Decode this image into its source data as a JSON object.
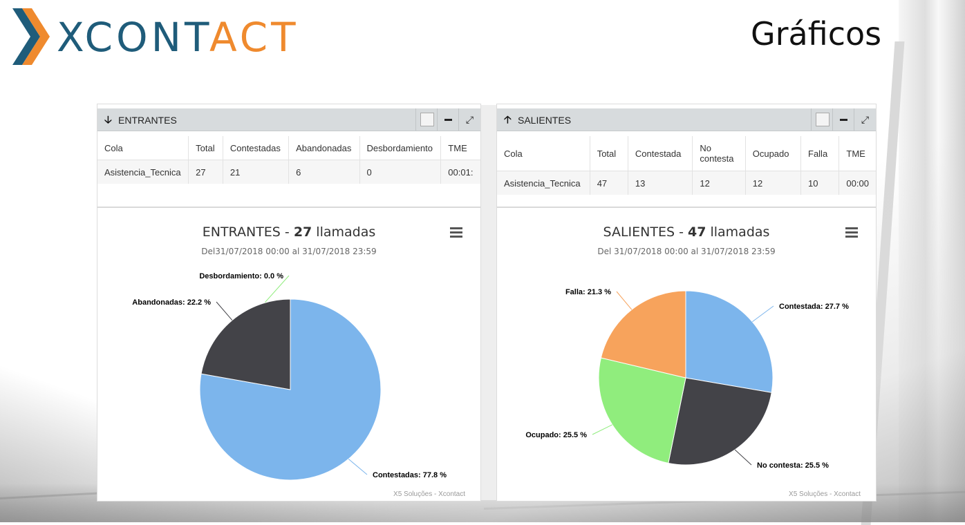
{
  "header": {
    "logo_left": "X",
    "logo_mid": "CONT",
    "logo_right": "ACT",
    "page_title": "Gráficos"
  },
  "colors": {
    "contestadas": "#7cb5ec",
    "abandonadas": "#434348",
    "desbordamiento": "#90ed7d",
    "falla": "#f7a35c",
    "ocupado": "#90ed7d",
    "no_contesta": "#434348",
    "contestada": "#7cb5ec"
  },
  "entrantes": {
    "panel_title": "ENTRANTES",
    "columns": [
      "Cola",
      "Total",
      "Contestadas",
      "Abandonadas",
      "Desbordamiento",
      "TME"
    ],
    "rows": [
      [
        "Asistencia_Tecnica",
        "27",
        "21",
        "6",
        "0",
        "00:01:"
      ]
    ],
    "chart_title_prefix": "ENTRANTES - ",
    "chart_title_count": "27",
    "chart_title_suffix": " llamadas",
    "chart_subtitle": "Del31/07/2018 00:00 al 31/07/2018 23:59",
    "credits": "X5 Soluções - Xcontact"
  },
  "salientes": {
    "panel_title": "SALIENTES",
    "columns": [
      "Cola",
      "Total",
      "Contestada",
      "No contesta",
      "Ocupado",
      "Falla",
      "TME"
    ],
    "rows": [
      [
        "Asistencia_Tecnica",
        "47",
        "13",
        "12",
        "12",
        "10",
        "00:00"
      ]
    ],
    "chart_title_prefix": "SALIENTES - ",
    "chart_title_count": "47",
    "chart_title_suffix": " llamadas",
    "chart_subtitle": "Del 31/07/2018 00:00 al 31/07/2018 23:59",
    "credits": "X5 Soluções - Xcontact"
  },
  "chart_data": [
    {
      "type": "pie",
      "title": "ENTRANTES - 27 llamadas",
      "subtitle": "Del31/07/2018 00:00 al 31/07/2018 23:59",
      "slices": [
        {
          "name": "Contestadas",
          "value": 77.8,
          "label": "Contestadas: 77.8 %",
          "color": "#7cb5ec"
        },
        {
          "name": "Desbordamiento",
          "value": 0.0,
          "label": "Desbordamiento: 0.0 %",
          "color": "#90ed7d"
        },
        {
          "name": "Abandonadas",
          "value": 22.2,
          "label": "Abandonadas: 22.2 %",
          "color": "#434348"
        }
      ]
    },
    {
      "type": "pie",
      "title": "SALIENTES - 47 llamadas",
      "subtitle": "Del 31/07/2018 00:00 al 31/07/2018 23:59",
      "slices": [
        {
          "name": "Contestada",
          "value": 27.7,
          "label": "Contestada: 27.7 %",
          "color": "#7cb5ec"
        },
        {
          "name": "No contesta",
          "value": 25.5,
          "label": "No contesta: 25.5 %",
          "color": "#434348"
        },
        {
          "name": "Ocupado",
          "value": 25.5,
          "label": "Ocupado: 25.5 %",
          "color": "#90ed7d"
        },
        {
          "name": "Falla",
          "value": 21.3,
          "label": "Falla: 21.3 %",
          "color": "#f7a35c"
        }
      ]
    }
  ]
}
